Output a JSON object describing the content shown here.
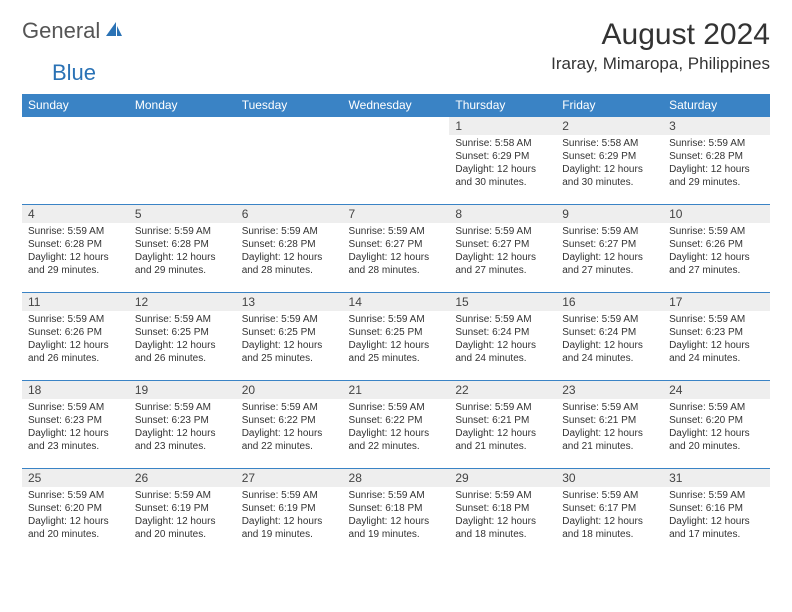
{
  "logo": {
    "part1": "General",
    "part2": "Blue"
  },
  "title": "August 2024",
  "location": "Iraray, Mimaropa, Philippines",
  "colors": {
    "header_bg": "#3a83c5",
    "header_fg": "#ffffff",
    "daynum_bg": "#eeeeee",
    "row_border": "#3a83c5",
    "logo_gray": "#555555",
    "logo_blue": "#2a72b5",
    "text": "#333333",
    "background": "#ffffff"
  },
  "columns": [
    "Sunday",
    "Monday",
    "Tuesday",
    "Wednesday",
    "Thursday",
    "Friday",
    "Saturday"
  ],
  "weeks": [
    [
      {
        "n": "",
        "sr": "",
        "ss": "",
        "dl": ""
      },
      {
        "n": "",
        "sr": "",
        "ss": "",
        "dl": ""
      },
      {
        "n": "",
        "sr": "",
        "ss": "",
        "dl": ""
      },
      {
        "n": "",
        "sr": "",
        "ss": "",
        "dl": ""
      },
      {
        "n": "1",
        "sr": "Sunrise: 5:58 AM",
        "ss": "Sunset: 6:29 PM",
        "dl": "Daylight: 12 hours and 30 minutes."
      },
      {
        "n": "2",
        "sr": "Sunrise: 5:58 AM",
        "ss": "Sunset: 6:29 PM",
        "dl": "Daylight: 12 hours and 30 minutes."
      },
      {
        "n": "3",
        "sr": "Sunrise: 5:59 AM",
        "ss": "Sunset: 6:28 PM",
        "dl": "Daylight: 12 hours and 29 minutes."
      }
    ],
    [
      {
        "n": "4",
        "sr": "Sunrise: 5:59 AM",
        "ss": "Sunset: 6:28 PM",
        "dl": "Daylight: 12 hours and 29 minutes."
      },
      {
        "n": "5",
        "sr": "Sunrise: 5:59 AM",
        "ss": "Sunset: 6:28 PM",
        "dl": "Daylight: 12 hours and 29 minutes."
      },
      {
        "n": "6",
        "sr": "Sunrise: 5:59 AM",
        "ss": "Sunset: 6:28 PM",
        "dl": "Daylight: 12 hours and 28 minutes."
      },
      {
        "n": "7",
        "sr": "Sunrise: 5:59 AM",
        "ss": "Sunset: 6:27 PM",
        "dl": "Daylight: 12 hours and 28 minutes."
      },
      {
        "n": "8",
        "sr": "Sunrise: 5:59 AM",
        "ss": "Sunset: 6:27 PM",
        "dl": "Daylight: 12 hours and 27 minutes."
      },
      {
        "n": "9",
        "sr": "Sunrise: 5:59 AM",
        "ss": "Sunset: 6:27 PM",
        "dl": "Daylight: 12 hours and 27 minutes."
      },
      {
        "n": "10",
        "sr": "Sunrise: 5:59 AM",
        "ss": "Sunset: 6:26 PM",
        "dl": "Daylight: 12 hours and 27 minutes."
      }
    ],
    [
      {
        "n": "11",
        "sr": "Sunrise: 5:59 AM",
        "ss": "Sunset: 6:26 PM",
        "dl": "Daylight: 12 hours and 26 minutes."
      },
      {
        "n": "12",
        "sr": "Sunrise: 5:59 AM",
        "ss": "Sunset: 6:25 PM",
        "dl": "Daylight: 12 hours and 26 minutes."
      },
      {
        "n": "13",
        "sr": "Sunrise: 5:59 AM",
        "ss": "Sunset: 6:25 PM",
        "dl": "Daylight: 12 hours and 25 minutes."
      },
      {
        "n": "14",
        "sr": "Sunrise: 5:59 AM",
        "ss": "Sunset: 6:25 PM",
        "dl": "Daylight: 12 hours and 25 minutes."
      },
      {
        "n": "15",
        "sr": "Sunrise: 5:59 AM",
        "ss": "Sunset: 6:24 PM",
        "dl": "Daylight: 12 hours and 24 minutes."
      },
      {
        "n": "16",
        "sr": "Sunrise: 5:59 AM",
        "ss": "Sunset: 6:24 PM",
        "dl": "Daylight: 12 hours and 24 minutes."
      },
      {
        "n": "17",
        "sr": "Sunrise: 5:59 AM",
        "ss": "Sunset: 6:23 PM",
        "dl": "Daylight: 12 hours and 24 minutes."
      }
    ],
    [
      {
        "n": "18",
        "sr": "Sunrise: 5:59 AM",
        "ss": "Sunset: 6:23 PM",
        "dl": "Daylight: 12 hours and 23 minutes."
      },
      {
        "n": "19",
        "sr": "Sunrise: 5:59 AM",
        "ss": "Sunset: 6:23 PM",
        "dl": "Daylight: 12 hours and 23 minutes."
      },
      {
        "n": "20",
        "sr": "Sunrise: 5:59 AM",
        "ss": "Sunset: 6:22 PM",
        "dl": "Daylight: 12 hours and 22 minutes."
      },
      {
        "n": "21",
        "sr": "Sunrise: 5:59 AM",
        "ss": "Sunset: 6:22 PM",
        "dl": "Daylight: 12 hours and 22 minutes."
      },
      {
        "n": "22",
        "sr": "Sunrise: 5:59 AM",
        "ss": "Sunset: 6:21 PM",
        "dl": "Daylight: 12 hours and 21 minutes."
      },
      {
        "n": "23",
        "sr": "Sunrise: 5:59 AM",
        "ss": "Sunset: 6:21 PM",
        "dl": "Daylight: 12 hours and 21 minutes."
      },
      {
        "n": "24",
        "sr": "Sunrise: 5:59 AM",
        "ss": "Sunset: 6:20 PM",
        "dl": "Daylight: 12 hours and 20 minutes."
      }
    ],
    [
      {
        "n": "25",
        "sr": "Sunrise: 5:59 AM",
        "ss": "Sunset: 6:20 PM",
        "dl": "Daylight: 12 hours and 20 minutes."
      },
      {
        "n": "26",
        "sr": "Sunrise: 5:59 AM",
        "ss": "Sunset: 6:19 PM",
        "dl": "Daylight: 12 hours and 20 minutes."
      },
      {
        "n": "27",
        "sr": "Sunrise: 5:59 AM",
        "ss": "Sunset: 6:19 PM",
        "dl": "Daylight: 12 hours and 19 minutes."
      },
      {
        "n": "28",
        "sr": "Sunrise: 5:59 AM",
        "ss": "Sunset: 6:18 PM",
        "dl": "Daylight: 12 hours and 19 minutes."
      },
      {
        "n": "29",
        "sr": "Sunrise: 5:59 AM",
        "ss": "Sunset: 6:18 PM",
        "dl": "Daylight: 12 hours and 18 minutes."
      },
      {
        "n": "30",
        "sr": "Sunrise: 5:59 AM",
        "ss": "Sunset: 6:17 PM",
        "dl": "Daylight: 12 hours and 18 minutes."
      },
      {
        "n": "31",
        "sr": "Sunrise: 5:59 AM",
        "ss": "Sunset: 6:16 PM",
        "dl": "Daylight: 12 hours and 17 minutes."
      }
    ]
  ]
}
